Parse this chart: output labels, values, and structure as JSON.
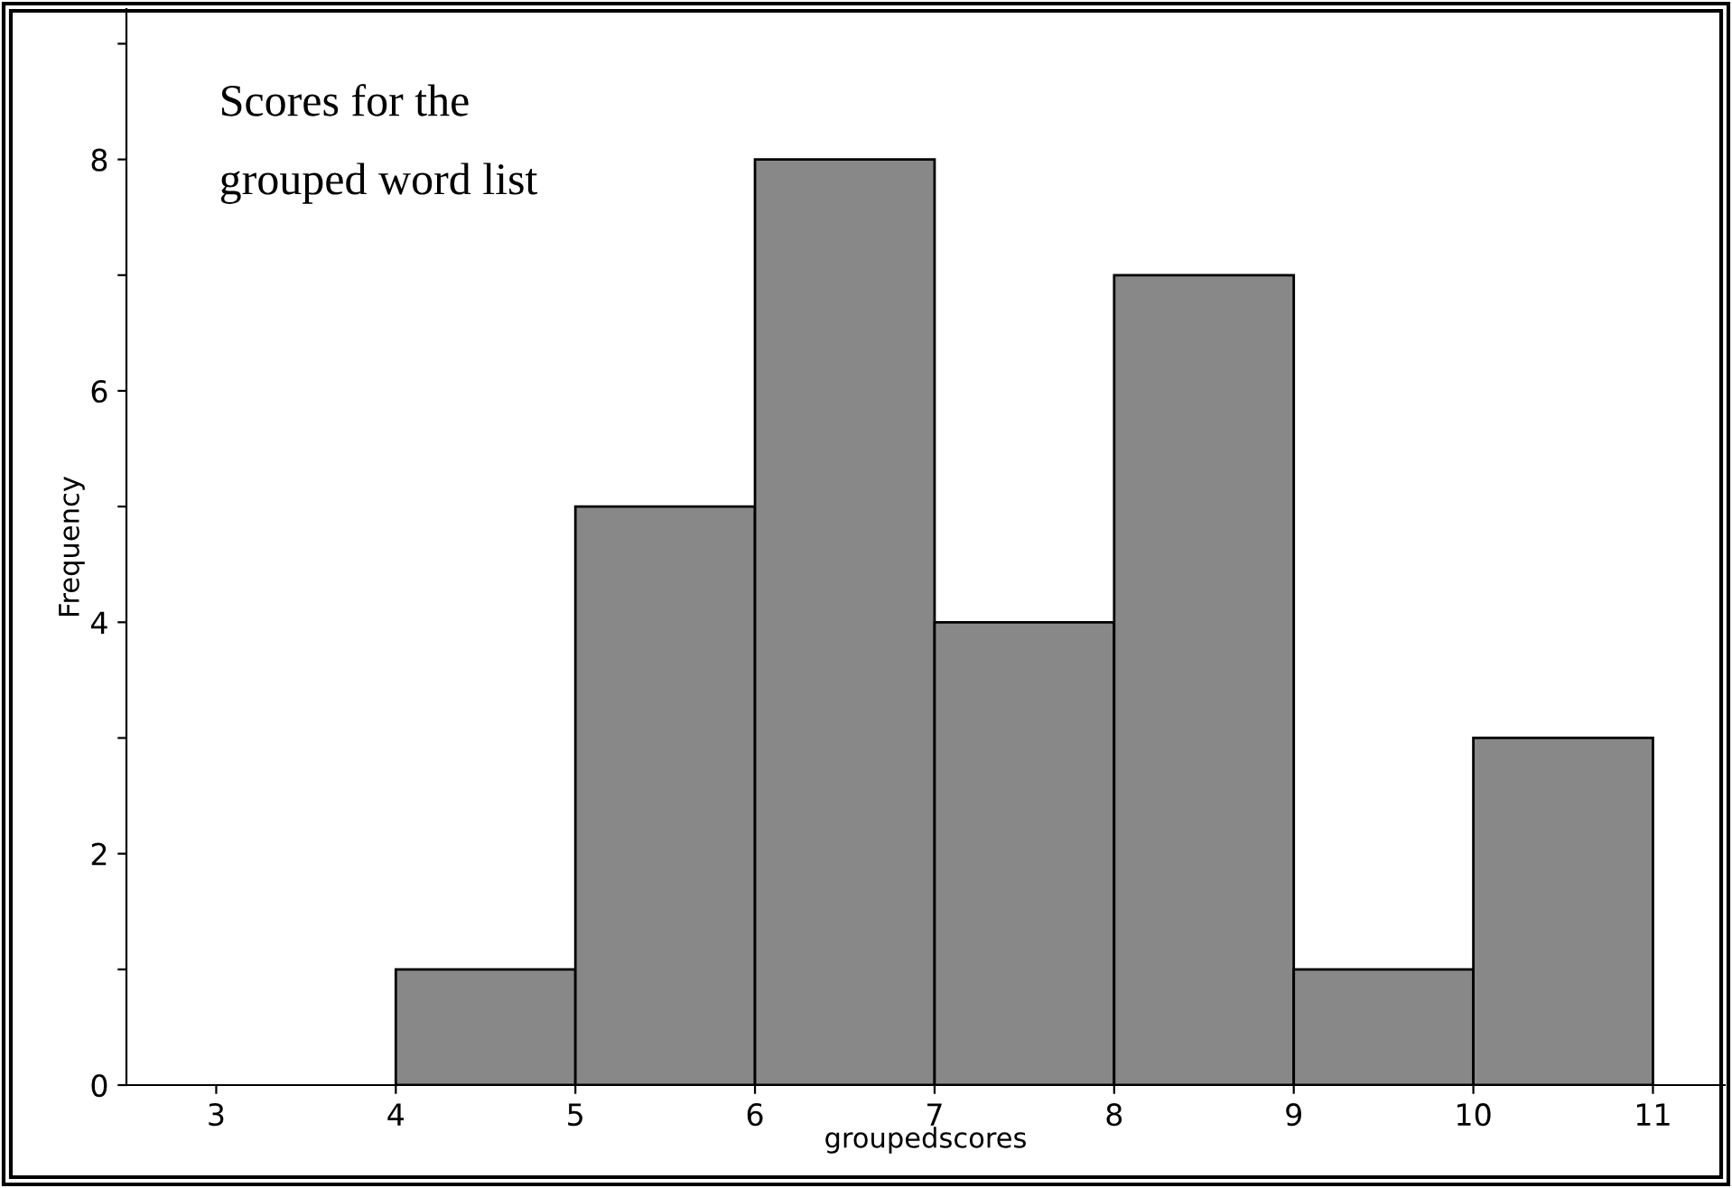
{
  "chart_data": {
    "type": "histogram",
    "title": "Scores for the\ngrouped word list",
    "xlabel": "groupedscores",
    "ylabel": "Frequency",
    "bins": [
      4,
      5,
      6,
      7,
      8,
      9,
      10,
      11
    ],
    "values": [
      1,
      5,
      8,
      4,
      7,
      1,
      3
    ],
    "color": "#888888",
    "xlim": [
      2.5,
      11.4
    ],
    "xticks": [
      3,
      4,
      5,
      6,
      7,
      8,
      9,
      10,
      11
    ],
    "ylim": [
      0,
      9.3
    ],
    "yticks": [
      0,
      {
        "value": 1,
        "label": null
      },
      2,
      {
        "value": 3,
        "label": null
      },
      4,
      {
        "value": 5,
        "label": null
      },
      6,
      {
        "value": 7,
        "label": null
      },
      8,
      {
        "value": 9,
        "label": null
      }
    ],
    "grid": false,
    "legend": false
  }
}
